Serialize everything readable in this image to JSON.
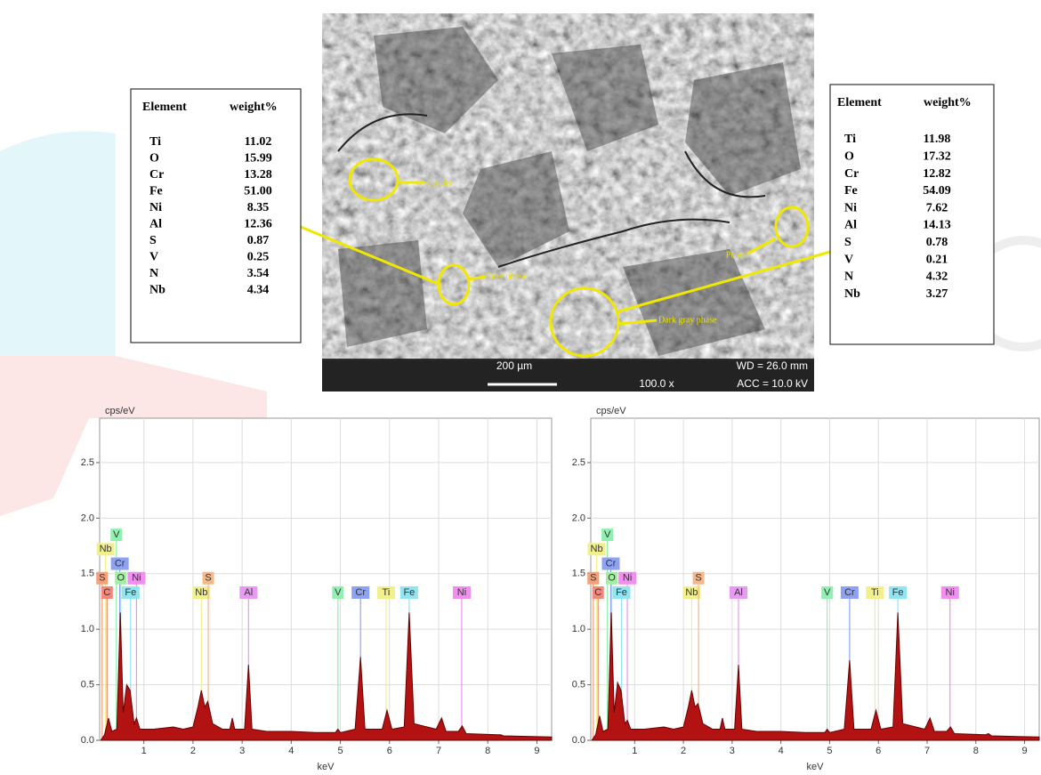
{
  "sem_image": {
    "annotations": {
      "cracks": "Cracks",
      "gray_phase": "Gray phase",
      "dark_gray_phase": "Dark gray phase",
      "pores": "Pores"
    },
    "scale_bar": "200 µm",
    "wd": "WD = 26.0 mm",
    "magnification": "100.0 x",
    "acc": "ACC = 10.0 kV"
  },
  "tables": [
    {
      "header": [
        "Element",
        "weight%"
      ],
      "rows": [
        [
          "Ti",
          "11.02"
        ],
        [
          "O",
          "15.99"
        ],
        [
          "Cr",
          "13.28"
        ],
        [
          "Fe",
          "51.00"
        ],
        [
          "Ni",
          "8.35"
        ],
        [
          "Al",
          "12.36"
        ],
        [
          "S",
          "0.87"
        ],
        [
          "V",
          "0.25"
        ],
        [
          "N",
          "3.54"
        ],
        [
          "Nb",
          "4.34"
        ]
      ]
    },
    {
      "header": [
        "Element",
        "weight%"
      ],
      "rows": [
        [
          "Ti",
          "11.98"
        ],
        [
          "O",
          "17.32"
        ],
        [
          "Cr",
          "12.82"
        ],
        [
          "Fe",
          "54.09"
        ],
        [
          "Ni",
          "7.62"
        ],
        [
          "Al",
          "14.13"
        ],
        [
          "S",
          "0.78"
        ],
        [
          "V",
          "0.21"
        ],
        [
          "N",
          "4.32"
        ],
        [
          "Nb",
          "3.27"
        ]
      ]
    }
  ],
  "chart_data": [
    {
      "type": "area",
      "y_label": "cps/eV",
      "x_label": "keV",
      "color": "#b31212",
      "xlim": [
        0.1,
        9.3
      ],
      "ylim": [
        0,
        2.9
      ],
      "xticks": [
        1,
        2,
        3,
        4,
        5,
        6,
        7,
        8,
        9
      ],
      "yticks": [
        {
          "value": 0,
          "label": "0.0"
        },
        0.5,
        {
          "value": 1,
          "label": "1.0"
        },
        1.5,
        {
          "value": 2,
          "label": "2.0"
        },
        2.5
      ],
      "grid": true,
      "x": [
        0.12,
        0.2,
        0.28,
        0.35,
        0.45,
        0.52,
        0.58,
        0.65,
        0.72,
        0.8,
        0.85,
        0.92,
        1.2,
        1.6,
        1.8,
        2.0,
        2.1,
        2.17,
        2.24,
        2.3,
        2.4,
        2.6,
        2.75,
        2.8,
        2.85,
        3.05,
        3.13,
        3.2,
        3.5,
        4.0,
        4.5,
        4.9,
        4.95,
        5.0,
        5.3,
        5.41,
        5.5,
        5.85,
        5.95,
        6.05,
        6.3,
        6.4,
        6.5,
        6.95,
        7.06,
        7.15,
        7.4,
        7.48,
        7.56,
        8.2,
        8.26,
        8.32,
        9.3
      ],
      "values": [
        0.0,
        0.05,
        0.2,
        0.08,
        0.1,
        1.15,
        0.25,
        0.5,
        0.45,
        0.15,
        0.2,
        0.1,
        0.1,
        0.12,
        0.1,
        0.12,
        0.3,
        0.45,
        0.3,
        0.35,
        0.15,
        0.1,
        0.1,
        0.2,
        0.1,
        0.1,
        0.68,
        0.1,
        0.08,
        0.08,
        0.07,
        0.07,
        0.1,
        0.07,
        0.1,
        0.75,
        0.1,
        0.1,
        0.27,
        0.1,
        0.12,
        1.15,
        0.15,
        0.1,
        0.2,
        0.08,
        0.08,
        0.13,
        0.06,
        0.05,
        0.05,
        0.04,
        0.03
      ],
      "elements": [
        {
          "label": "Nb",
          "kev": 0.22,
          "color": "#f2f08a"
        },
        {
          "label": "V",
          "kev": 0.44,
          "color": "#8ff0b0"
        },
        {
          "label": "Cr",
          "kev": 0.51,
          "color": "#8da2f2"
        },
        {
          "label": "S",
          "kev": 0.15,
          "color": "#f4a07a"
        },
        {
          "label": "O",
          "kev": 0.53,
          "color": "#9ff09f"
        },
        {
          "label": "Ni",
          "kev": 0.85,
          "color": "#f08ff0"
        },
        {
          "label": "C",
          "kev": 0.25,
          "color": "#f4877a"
        },
        {
          "label": "Fe",
          "kev": 0.73,
          "color": "#8fe6f2"
        },
        {
          "label": "Nb",
          "kev": 2.17,
          "color": "#f2f08a"
        },
        {
          "label": "S",
          "kev": 2.31,
          "color": "#f4b88a"
        },
        {
          "label": "Al",
          "kev": 3.13,
          "color": "#e89af2"
        },
        {
          "label": "V",
          "kev": 4.95,
          "color": "#8ff0b0"
        },
        {
          "label": "Cr",
          "kev": 5.41,
          "color": "#8da2f2"
        },
        {
          "label": "Ti",
          "kev": 5.93,
          "color": "#f2f08a"
        },
        {
          "label": "Fe",
          "kev": 6.4,
          "color": "#8fe6f2"
        },
        {
          "label": "Ni",
          "kev": 7.47,
          "color": "#f08ff0"
        }
      ]
    },
    {
      "type": "area",
      "y_label": "cps/eV",
      "x_label": "keV",
      "color": "#b31212",
      "xlim": [
        0.1,
        9.3
      ],
      "ylim": [
        0,
        2.9
      ],
      "xticks": [
        1,
        2,
        3,
        4,
        5,
        6,
        7,
        8,
        9
      ],
      "yticks": [
        {
          "value": 0,
          "label": "0.0"
        },
        0.5,
        {
          "value": 1,
          "label": "1.0"
        },
        1.5,
        {
          "value": 2,
          "label": "2.0"
        },
        2.5
      ],
      "grid": true,
      "x": [
        0.12,
        0.2,
        0.28,
        0.35,
        0.45,
        0.52,
        0.58,
        0.65,
        0.72,
        0.8,
        0.85,
        0.92,
        1.2,
        1.6,
        1.8,
        2.0,
        2.1,
        2.17,
        2.24,
        2.3,
        2.4,
        2.6,
        2.75,
        2.8,
        2.85,
        3.05,
        3.13,
        3.2,
        3.5,
        4.0,
        4.5,
        4.9,
        4.95,
        5.0,
        5.3,
        5.41,
        5.5,
        5.85,
        5.95,
        6.05,
        6.3,
        6.4,
        6.5,
        6.95,
        7.06,
        7.15,
        7.4,
        7.48,
        7.56,
        8.2,
        8.26,
        8.32,
        9.3
      ],
      "values": [
        0.0,
        0.05,
        0.22,
        0.08,
        0.1,
        1.15,
        0.25,
        0.52,
        0.45,
        0.15,
        0.18,
        0.1,
        0.1,
        0.12,
        0.1,
        0.12,
        0.3,
        0.45,
        0.3,
        0.33,
        0.15,
        0.1,
        0.1,
        0.2,
        0.1,
        0.1,
        0.68,
        0.1,
        0.08,
        0.08,
        0.07,
        0.07,
        0.1,
        0.07,
        0.1,
        0.72,
        0.1,
        0.1,
        0.27,
        0.1,
        0.12,
        1.15,
        0.15,
        0.1,
        0.2,
        0.08,
        0.08,
        0.12,
        0.06,
        0.05,
        0.06,
        0.04,
        0.03
      ],
      "elements": [
        {
          "label": "Nb",
          "kev": 0.22,
          "color": "#f2f08a"
        },
        {
          "label": "V",
          "kev": 0.44,
          "color": "#8ff0b0"
        },
        {
          "label": "Cr",
          "kev": 0.51,
          "color": "#8da2f2"
        },
        {
          "label": "S",
          "kev": 0.15,
          "color": "#f4a07a"
        },
        {
          "label": "O",
          "kev": 0.53,
          "color": "#9ff09f"
        },
        {
          "label": "Ni",
          "kev": 0.85,
          "color": "#f08ff0"
        },
        {
          "label": "C",
          "kev": 0.25,
          "color": "#f4877a"
        },
        {
          "label": "Fe",
          "kev": 0.73,
          "color": "#8fe6f2"
        },
        {
          "label": "Nb",
          "kev": 2.17,
          "color": "#f2f08a"
        },
        {
          "label": "S",
          "kev": 2.31,
          "color": "#f4b88a"
        },
        {
          "label": "Al",
          "kev": 3.13,
          "color": "#e89af2"
        },
        {
          "label": "V",
          "kev": 4.95,
          "color": "#8ff0b0"
        },
        {
          "label": "Cr",
          "kev": 5.41,
          "color": "#8da2f2"
        },
        {
          "label": "Ti",
          "kev": 5.93,
          "color": "#f2f08a"
        },
        {
          "label": "Fe",
          "kev": 6.4,
          "color": "#8fe6f2"
        },
        {
          "label": "Ni",
          "kev": 7.47,
          "color": "#f08ff0"
        }
      ]
    }
  ]
}
